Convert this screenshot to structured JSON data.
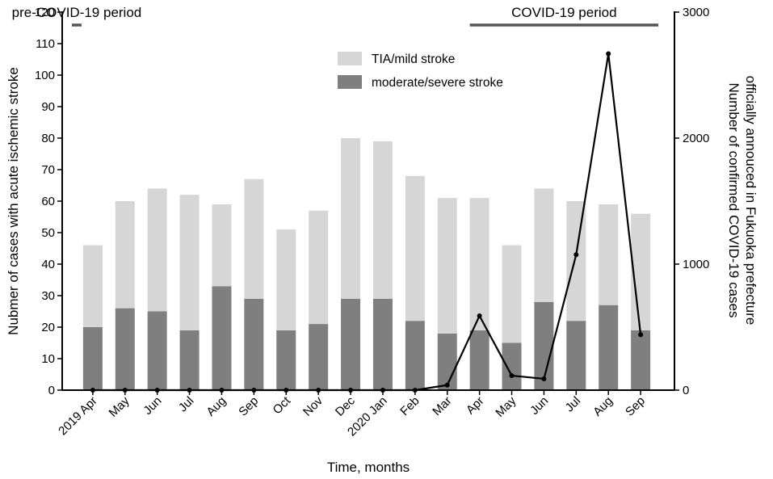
{
  "chart_data": {
    "type": "bar",
    "stacked": true,
    "categories": [
      "2019 Apr",
      "May",
      "Jun",
      "Jul",
      "Aug",
      "Sep",
      "Oct",
      "Nov",
      "Dec",
      "2020 Jan",
      "Feb",
      "Mar",
      "Apr",
      "May",
      "Jun",
      "Jul",
      "Aug",
      "Sep"
    ],
    "series": [
      {
        "name": "moderate/severe stroke",
        "color": "#7f7f7f",
        "values": [
          20,
          26,
          25,
          19,
          33,
          29,
          19,
          21,
          29,
          29,
          22,
          18,
          19,
          15,
          28,
          22,
          27,
          19
        ]
      },
      {
        "name": "TIA/mild stroke",
        "color": "#d6d6d6",
        "values": [
          26,
          34,
          39,
          43,
          26,
          38,
          32,
          36,
          51,
          50,
          46,
          43,
          42,
          31,
          36,
          38,
          32,
          37
        ]
      }
    ],
    "totals": [
      46,
      60,
      64,
      62,
      59,
      67,
      51,
      57,
      80,
      79,
      68,
      61,
      61,
      46,
      64,
      60,
      59,
      56
    ],
    "covid_cases": {
      "name": "Number of confirmed COVID-19 cases officially annouced in Fukuoka prefecture",
      "axis": "right",
      "color": "#000000",
      "values": [
        0,
        0,
        0,
        0,
        0,
        0,
        0,
        0,
        0,
        0,
        0,
        40,
        590,
        115,
        90,
        1075,
        2670,
        440
      ]
    },
    "y_left": {
      "label": "Nubmer of cases with acute ischemic stroke",
      "lim": [
        0,
        120
      ],
      "ticks": [
        0,
        10,
        20,
        30,
        40,
        50,
        60,
        70,
        80,
        90,
        100,
        110,
        120
      ]
    },
    "y_right": {
      "label_lines": [
        "Number of confirmed COVID-19 cases",
        "officially annouced in Fukuoka prefecture"
      ],
      "lim": [
        0,
        3000
      ],
      "ticks": [
        0,
        1000,
        2000,
        3000
      ]
    },
    "xlabel": "Time, months",
    "periods": [
      {
        "label": "pre-COVID-19 period",
        "from": "2019 Apr",
        "to": "2020 Mar"
      },
      {
        "label": "COVID-19 period",
        "from": "Apr",
        "to": "Sep"
      }
    ],
    "legend": {
      "position": "top-center",
      "entries": [
        "TIA/mild stroke",
        "moderate/severe stroke"
      ]
    }
  }
}
